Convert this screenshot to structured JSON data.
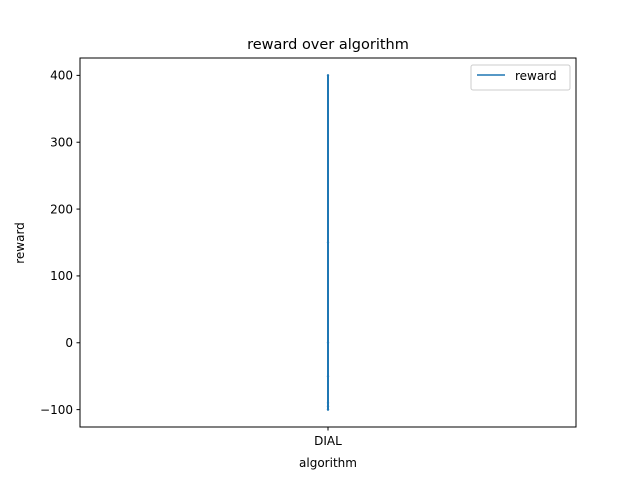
{
  "chart_data": {
    "type": "line",
    "title": "reward over algorithm",
    "xlabel": "algorithm",
    "ylabel": "reward",
    "categories": [
      "DIAL"
    ],
    "ylim": [
      -126,
      426
    ],
    "yticks": [
      -100,
      0,
      100,
      200,
      300,
      400
    ],
    "ytick_labels": [
      "−100",
      "0",
      "100",
      "200",
      "300",
      "400"
    ],
    "legend_position": "upper right",
    "grid": false,
    "series": [
      {
        "name": "reward",
        "color": "#1f77b4",
        "x": [
          "DIAL",
          "DIAL",
          "DIAL",
          "DIAL",
          "DIAL",
          "DIAL",
          "DIAL"
        ],
        "values": [
          400,
          150,
          0,
          -50,
          -90,
          -100,
          -95
        ]
      }
    ]
  }
}
